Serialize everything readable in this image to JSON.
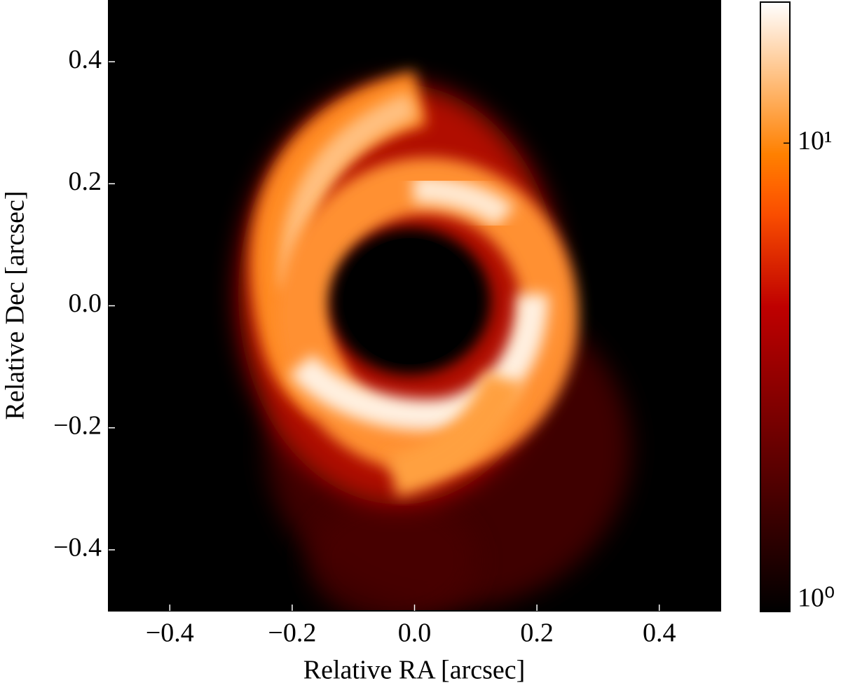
{
  "chart_data": {
    "type": "image",
    "xlabel": "Relative RA [arcsec]",
    "ylabel": "Relative Dec [arcsec]",
    "xlim": [
      -0.5,
      0.5
    ],
    "ylim": [
      -0.5,
      0.5
    ],
    "xticks": [
      {
        "value": -0.4,
        "label": "−0.4"
      },
      {
        "value": -0.2,
        "label": "−0.2"
      },
      {
        "value": 0,
        "label": "0.0"
      },
      0.2,
      0.4
    ],
    "yticks": [
      {
        "value": -0.4,
        "label": "−0.4"
      },
      {
        "value": -0.2,
        "label": "−0.2"
      },
      {
        "value": 0,
        "label": "0.0"
      },
      0.2,
      0.4
    ],
    "colormap": "gist_heat",
    "colorbar": {
      "scale": "log",
      "lim": [
        1,
        20
      ],
      "ticks": [
        {
          "value": 1,
          "label": "10⁰"
        },
        {
          "value": 10,
          "label": "10¹"
        }
      ]
    }
  }
}
